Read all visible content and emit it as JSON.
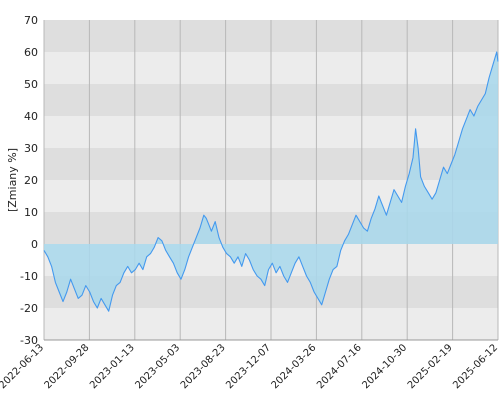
{
  "chart_data": {
    "type": "area",
    "ylabel": "[Zmiany %]",
    "ylim": [
      -30,
      70
    ],
    "y_ticks": [
      -30,
      -20,
      -10,
      0,
      10,
      20,
      30,
      40,
      50,
      60,
      70
    ],
    "x_tick_labels": [
      "2022-06-13",
      "2022-09-28",
      "2023-01-13",
      "2023-05-03",
      "2023-08-23",
      "2023-12-07",
      "2024-03-26",
      "2024-07-16",
      "2024-10-30",
      "2025-02-19",
      "2025-06-12"
    ],
    "grid": true,
    "colors": {
      "line": "#4499ee",
      "area": "#a8d8ec",
      "band_dark": "#dedede",
      "band_light": "#ececec",
      "grid_vertical": "#b8b8b8"
    },
    "series": [
      {
        "points": [
          [
            0,
            -2
          ],
          [
            3,
            -4
          ],
          [
            6,
            -7
          ],
          [
            9,
            -12
          ],
          [
            12,
            -15
          ],
          [
            15,
            -18
          ],
          [
            18,
            -15
          ],
          [
            21,
            -11
          ],
          [
            24,
            -14
          ],
          [
            27,
            -17
          ],
          [
            30,
            -16
          ],
          [
            33,
            -13
          ],
          [
            36,
            -15
          ],
          [
            39,
            -18
          ],
          [
            42,
            -20
          ],
          [
            45,
            -17
          ],
          [
            48,
            -19
          ],
          [
            51,
            -21
          ],
          [
            54,
            -16
          ],
          [
            57,
            -13
          ],
          [
            60,
            -12
          ],
          [
            63,
            -9
          ],
          [
            66,
            -7
          ],
          [
            69,
            -9
          ],
          [
            72,
            -8
          ],
          [
            75,
            -6
          ],
          [
            78,
            -8
          ],
          [
            81,
            -4
          ],
          [
            84,
            -3
          ],
          [
            87,
            -1
          ],
          [
            90,
            2
          ],
          [
            93,
            1
          ],
          [
            96,
            -2
          ],
          [
            99,
            -4
          ],
          [
            102,
            -6
          ],
          [
            105,
            -9
          ],
          [
            108,
            -11
          ],
          [
            111,
            -8
          ],
          [
            114,
            -4
          ],
          [
            117,
            -1
          ],
          [
            120,
            2
          ],
          [
            123,
            5
          ],
          [
            126,
            9
          ],
          [
            128,
            8
          ],
          [
            130,
            6
          ],
          [
            132,
            4
          ],
          [
            135,
            7
          ],
          [
            138,
            2
          ],
          [
            141,
            -1
          ],
          [
            144,
            -3
          ],
          [
            147,
            -4
          ],
          [
            150,
            -6
          ],
          [
            153,
            -4
          ],
          [
            156,
            -7
          ],
          [
            159,
            -3
          ],
          [
            162,
            -5
          ],
          [
            165,
            -8
          ],
          [
            168,
            -10
          ],
          [
            171,
            -11
          ],
          [
            174,
            -13
          ],
          [
            177,
            -8
          ],
          [
            180,
            -6
          ],
          [
            183,
            -9
          ],
          [
            186,
            -7
          ],
          [
            189,
            -10
          ],
          [
            192,
            -12
          ],
          [
            195,
            -9
          ],
          [
            198,
            -6
          ],
          [
            201,
            -4
          ],
          [
            204,
            -7
          ],
          [
            207,
            -10
          ],
          [
            210,
            -12
          ],
          [
            213,
            -15
          ],
          [
            216,
            -17
          ],
          [
            219,
            -19
          ],
          [
            222,
            -15
          ],
          [
            225,
            -11
          ],
          [
            228,
            -8
          ],
          [
            231,
            -7
          ],
          [
            234,
            -2
          ],
          [
            237,
            1
          ],
          [
            240,
            3
          ],
          [
            243,
            6
          ],
          [
            246,
            9
          ],
          [
            249,
            7
          ],
          [
            252,
            5
          ],
          [
            255,
            4
          ],
          [
            258,
            8
          ],
          [
            261,
            11
          ],
          [
            264,
            15
          ],
          [
            267,
            12
          ],
          [
            270,
            9
          ],
          [
            273,
            13
          ],
          [
            276,
            17
          ],
          [
            279,
            15
          ],
          [
            282,
            13
          ],
          [
            285,
            18
          ],
          [
            288,
            22
          ],
          [
            291,
            27
          ],
          [
            293,
            36
          ],
          [
            295,
            30
          ],
          [
            297,
            21
          ],
          [
            300,
            18
          ],
          [
            303,
            16
          ],
          [
            306,
            14
          ],
          [
            309,
            16
          ],
          [
            312,
            20
          ],
          [
            315,
            24
          ],
          [
            318,
            22
          ],
          [
            321,
            25
          ],
          [
            324,
            28
          ],
          [
            327,
            32
          ],
          [
            330,
            36
          ],
          [
            333,
            39
          ],
          [
            336,
            42
          ],
          [
            339,
            40
          ],
          [
            342,
            43
          ],
          [
            345,
            45
          ],
          [
            348,
            47
          ],
          [
            351,
            52
          ],
          [
            354,
            56
          ],
          [
            357,
            60
          ],
          [
            358,
            57
          ]
        ]
      }
    ]
  }
}
